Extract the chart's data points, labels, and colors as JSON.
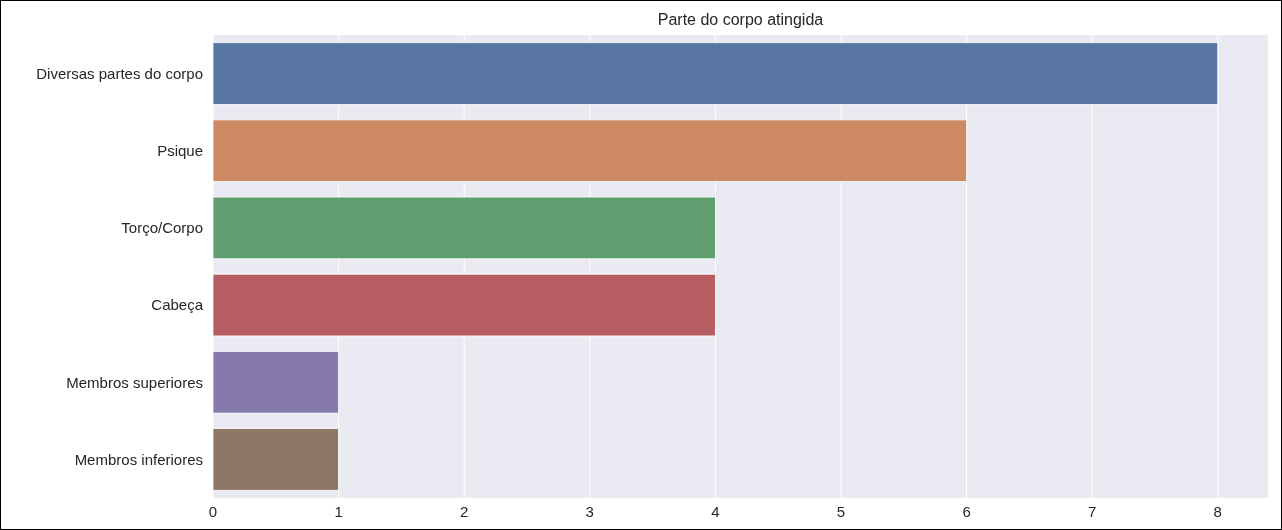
{
  "chart_data": {
    "type": "bar",
    "orientation": "horizontal",
    "title": "Parte do corpo atingida",
    "categories": [
      "Diversas partes do corpo",
      "Psique",
      "Torço/Corpo",
      "Cabeça",
      "Membros superiores",
      "Membros inferiores"
    ],
    "values": [
      8,
      6,
      4,
      4,
      1,
      1
    ],
    "colors": [
      "#5875a4",
      "#cc8963",
      "#5f9e6e",
      "#b55d60",
      "#857aab",
      "#8d7866"
    ],
    "xlim": [
      0,
      8.4
    ],
    "xticks": [
      0,
      1,
      2,
      3,
      4,
      5,
      6,
      7,
      8
    ],
    "grid": "x"
  }
}
